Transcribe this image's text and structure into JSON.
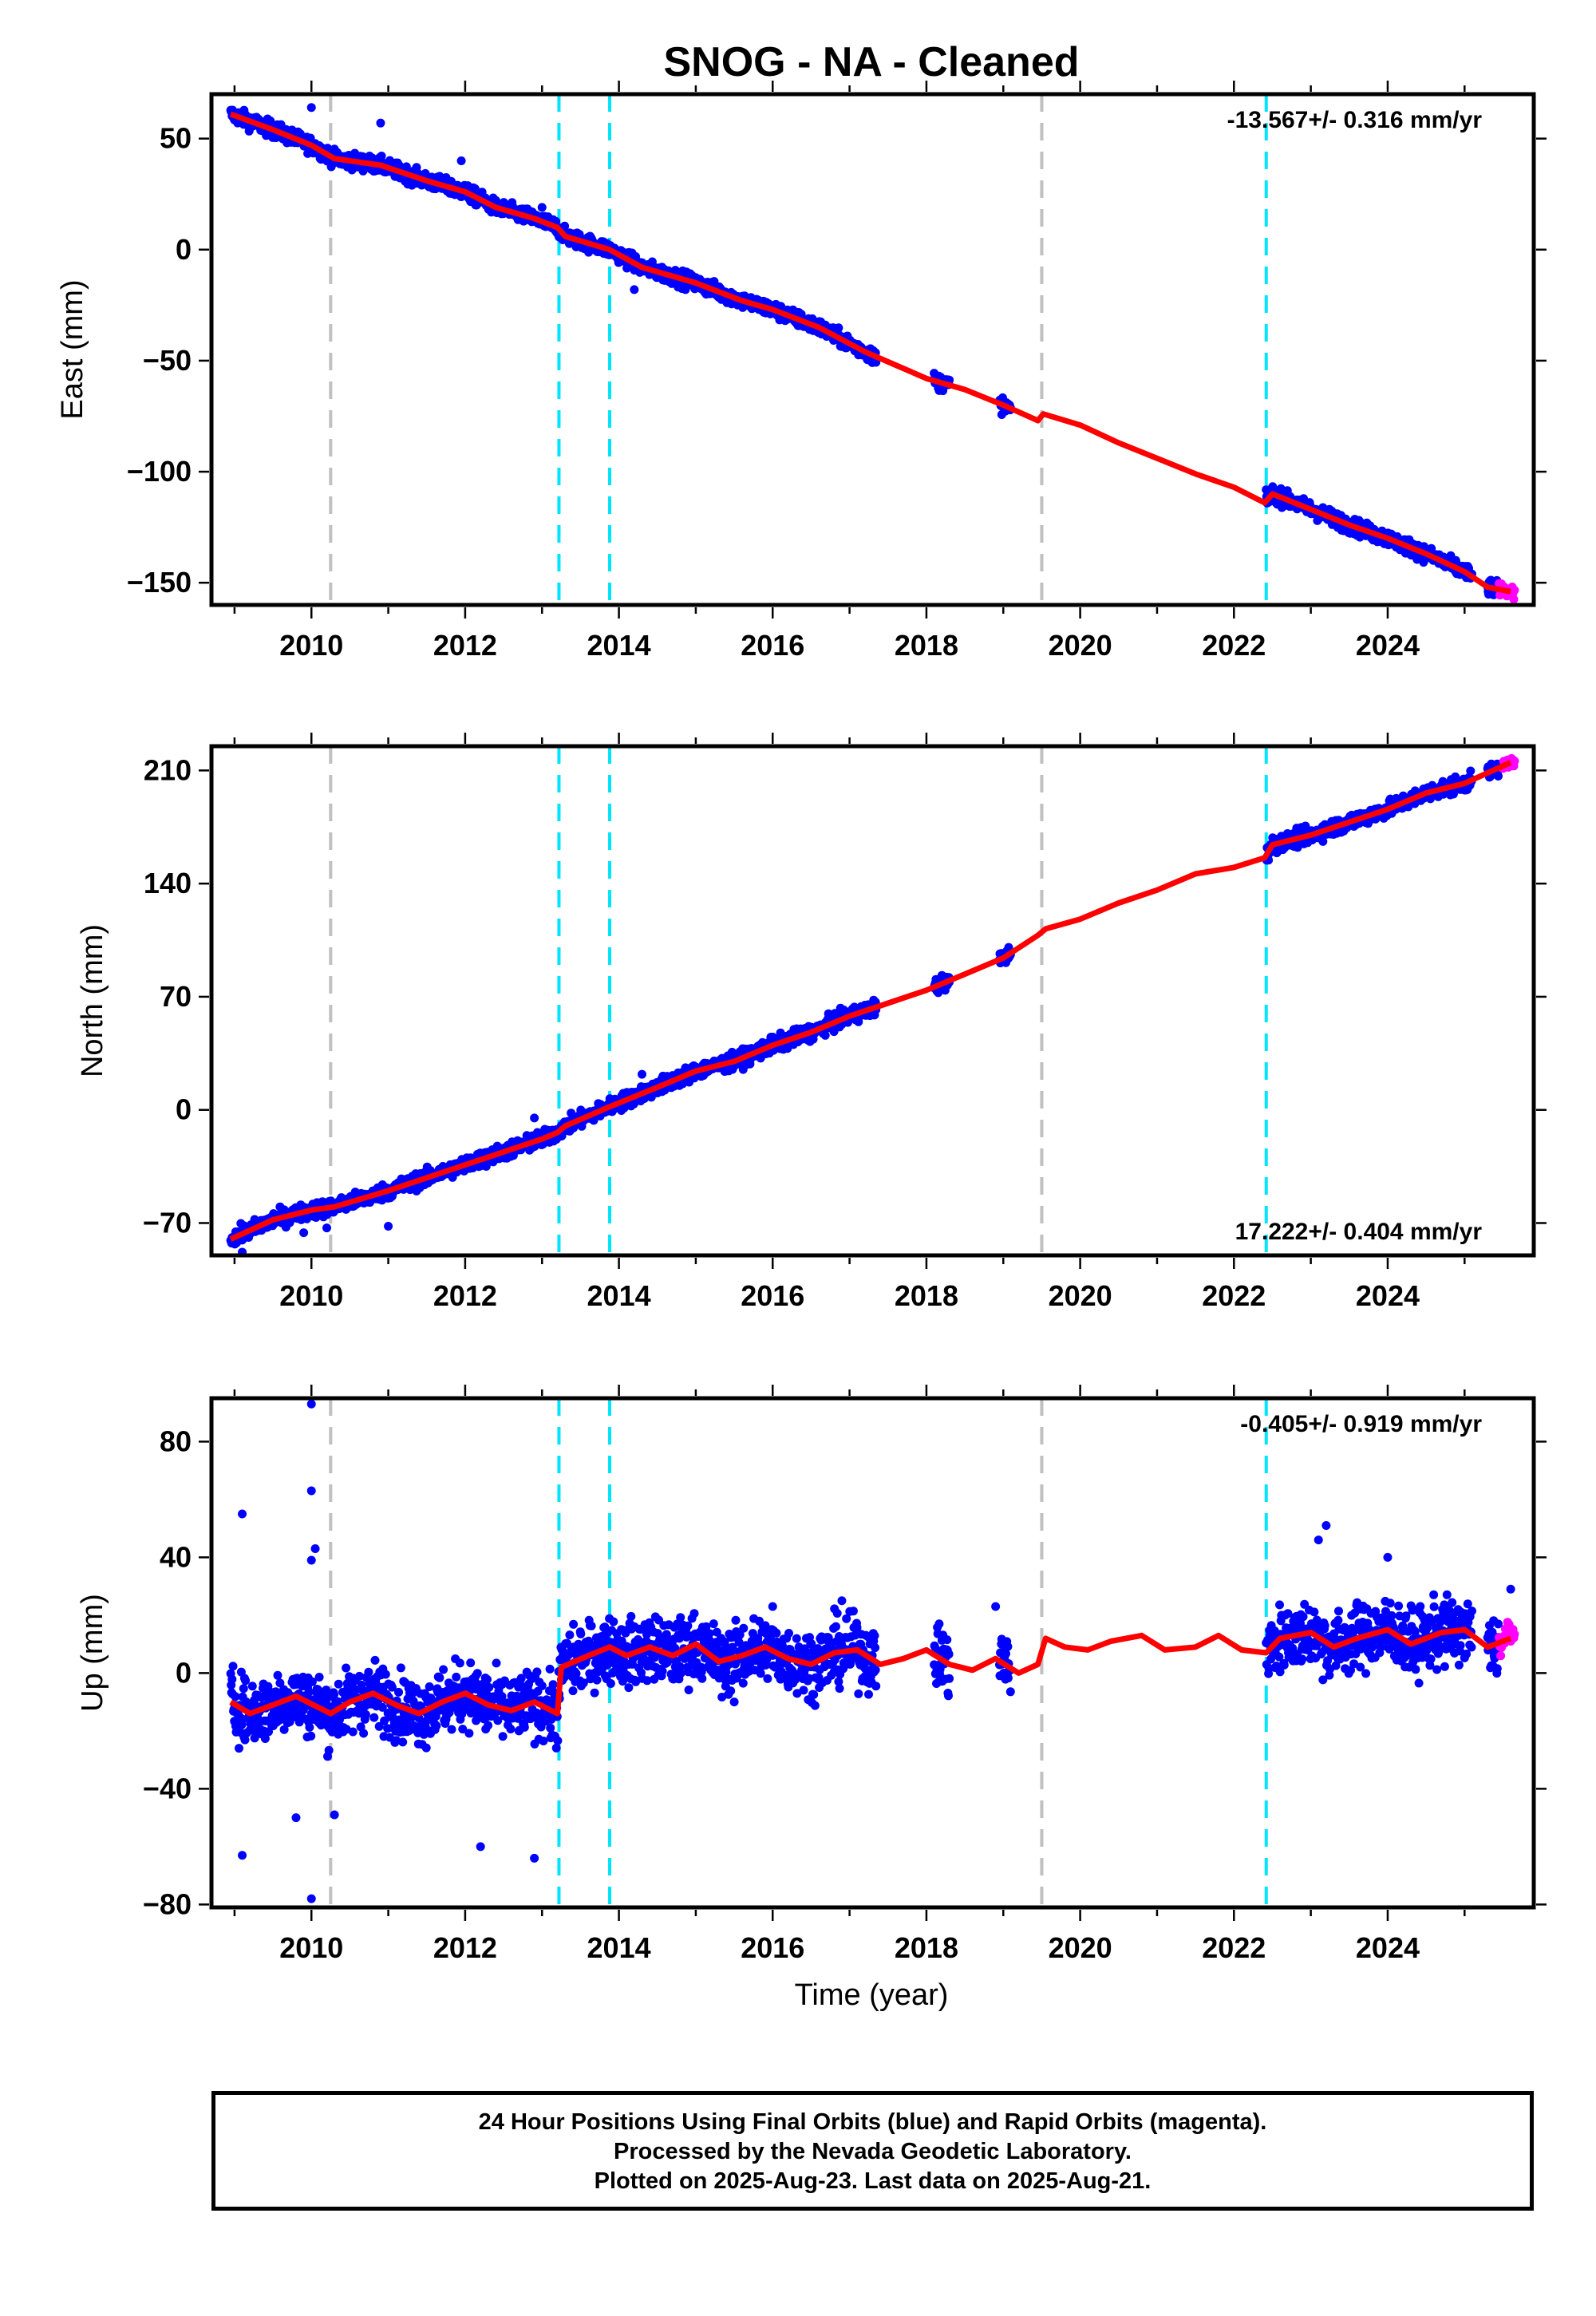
{
  "title": "SNOG  - NA - Cleaned",
  "xlabel": "Time (year)",
  "footer": {
    "line1": "24 Hour Positions Using Final Orbits (blue) and Rapid Orbits (magenta).",
    "line2": "Processed by the Nevada Geodetic Laboratory.",
    "line3": "Plotted on 2025-Aug-23. Last data on 2025-Aug-21."
  },
  "colors": {
    "final": "#0000ff",
    "rapid": "#ff00ff",
    "model": "#ff0000",
    "gray_line": "#c0c0c0",
    "cyan_line": "#00e5ff"
  },
  "chart_data": [
    {
      "type": "scatter",
      "component": "East",
      "ylabel": "East (mm)",
      "rate_label": "-13.567+/- 0.316 mm/yr",
      "rate_position": "top-right",
      "xlim": [
        2008.7,
        2025.9
      ],
      "ylim": [
        -160,
        70
      ],
      "x_ticks": [
        2010,
        2012,
        2014,
        2016,
        2018,
        2020,
        2022,
        2024
      ],
      "y_ticks": [
        -150,
        -100,
        -50,
        0,
        50
      ],
      "equipment_change_lines": [
        2010.25,
        2019.5
      ],
      "earthquake_lines": [
        2013.22,
        2013.88,
        2022.42
      ],
      "model_segments": [
        [
          [
            2008.95,
            61
          ],
          [
            2009.5,
            54
          ],
          [
            2010.0,
            47
          ],
          [
            2010.3,
            41
          ],
          [
            2010.9,
            38
          ],
          [
            2011.5,
            31
          ],
          [
            2012.0,
            26
          ],
          [
            2012.4,
            19
          ],
          [
            2012.9,
            14
          ],
          [
            2013.2,
            10
          ],
          [
            2013.3,
            6
          ],
          [
            2013.88,
            0
          ],
          [
            2014.3,
            -8
          ],
          [
            2015.0,
            -15
          ],
          [
            2015.6,
            -23
          ],
          [
            2016.0,
            -27
          ],
          [
            2016.6,
            -35
          ],
          [
            2017.2,
            -46
          ],
          [
            2017.6,
            -52
          ],
          [
            2018.0,
            -58
          ],
          [
            2018.5,
            -63
          ],
          [
            2019.0,
            -70
          ],
          [
            2019.45,
            -77
          ],
          [
            2019.52,
            -74
          ],
          [
            2020.0,
            -79
          ],
          [
            2020.5,
            -87
          ],
          [
            2021.0,
            -94
          ],
          [
            2021.5,
            -101
          ],
          [
            2022.0,
            -107
          ],
          [
            2022.4,
            -114
          ],
          [
            2022.5,
            -110
          ],
          [
            2023.0,
            -117
          ],
          [
            2023.5,
            -124
          ],
          [
            2024.0,
            -130
          ],
          [
            2024.5,
            -137
          ],
          [
            2025.0,
            -145
          ],
          [
            2025.3,
            -152
          ],
          [
            2025.6,
            -154
          ]
        ]
      ],
      "final_obs": {
        "segments": [
          [
            2008.95,
            2017.35
          ],
          [
            2018.1,
            2018.3
          ],
          [
            2018.95,
            2019.1
          ],
          [
            2022.42,
            2025.1
          ],
          [
            2025.3,
            2025.45
          ]
        ],
        "scatter_mm": 2.5
      },
      "rapid_obs": {
        "segments": [
          [
            2025.45,
            2025.65
          ]
        ],
        "scatter_mm": 2.0
      },
      "outliers": [
        [
          2010.0,
          64
        ],
        [
          2010.9,
          57
        ],
        [
          2011.95,
          40
        ],
        [
          2013.0,
          19
        ],
        [
          2014.2,
          -18
        ]
      ]
    },
    {
      "type": "scatter",
      "component": "North",
      "ylabel": "North (mm)",
      "rate_label": "17.222+/- 0.404 mm/yr",
      "rate_position": "bottom-right",
      "xlim": [
        2008.7,
        2025.9
      ],
      "ylim": [
        -90,
        225
      ],
      "x_ticks": [
        2010,
        2012,
        2014,
        2016,
        2018,
        2020,
        2022,
        2024
      ],
      "y_ticks": [
        -70,
        0,
        70,
        140,
        210
      ],
      "equipment_change_lines": [
        2010.25,
        2019.5
      ],
      "earthquake_lines": [
        2013.22,
        2013.88,
        2022.42
      ],
      "model_segments": [
        [
          [
            2008.95,
            -80
          ],
          [
            2009.5,
            -68
          ],
          [
            2010.0,
            -62
          ],
          [
            2010.3,
            -60
          ],
          [
            2011.0,
            -50
          ],
          [
            2011.5,
            -42
          ],
          [
            2012.0,
            -34
          ],
          [
            2012.5,
            -26
          ],
          [
            2013.0,
            -18
          ],
          [
            2013.2,
            -14
          ],
          [
            2013.3,
            -10
          ],
          [
            2013.88,
            2
          ],
          [
            2014.5,
            14
          ],
          [
            2015.0,
            24
          ],
          [
            2015.5,
            30
          ],
          [
            2016.0,
            40
          ],
          [
            2016.5,
            48
          ],
          [
            2017.0,
            58
          ],
          [
            2017.5,
            66
          ],
          [
            2018.0,
            74
          ],
          [
            2018.5,
            84
          ],
          [
            2019.0,
            94
          ],
          [
            2019.45,
            108
          ],
          [
            2019.55,
            112
          ],
          [
            2020.0,
            118
          ],
          [
            2020.5,
            128
          ],
          [
            2021.0,
            136
          ],
          [
            2021.5,
            146
          ],
          [
            2022.0,
            150
          ],
          [
            2022.4,
            156
          ],
          [
            2022.5,
            164
          ],
          [
            2023.0,
            170
          ],
          [
            2023.5,
            178
          ],
          [
            2024.0,
            186
          ],
          [
            2024.5,
            196
          ],
          [
            2025.0,
            202
          ],
          [
            2025.6,
            215
          ]
        ]
      ],
      "final_obs": {
        "segments": [
          [
            2008.95,
            2017.35
          ],
          [
            2018.1,
            2018.3
          ],
          [
            2018.95,
            2019.1
          ],
          [
            2022.42,
            2025.1
          ],
          [
            2025.3,
            2025.45
          ]
        ],
        "scatter_mm": 3.5
      },
      "rapid_obs": {
        "segments": [
          [
            2025.5,
            2025.65
          ]
        ],
        "scatter_mm": 2.0
      },
      "outliers": [
        [
          2009.1,
          -88
        ],
        [
          2009.9,
          -76
        ],
        [
          2010.2,
          -73
        ],
        [
          2011.0,
          -72
        ],
        [
          2012.9,
          -5
        ],
        [
          2014.3,
          22
        ]
      ]
    },
    {
      "type": "scatter",
      "component": "Up",
      "ylabel": "Up (mm)",
      "rate_label": "-0.405+/- 0.919 mm/yr",
      "rate_position": "top-right",
      "xlim": [
        2008.7,
        2025.9
      ],
      "ylim": [
        -81,
        95
      ],
      "x_ticks": [
        2010,
        2012,
        2014,
        2016,
        2018,
        2020,
        2022,
        2024
      ],
      "y_ticks": [
        -80,
        -40,
        0,
        40,
        80
      ],
      "equipment_change_lines": [
        2010.25,
        2019.5
      ],
      "earthquake_lines": [
        2013.22,
        2013.88,
        2022.42
      ],
      "model_segments": [
        [
          [
            2008.95,
            -10
          ],
          [
            2009.2,
            -14
          ],
          [
            2009.5,
            -11
          ],
          [
            2009.8,
            -8
          ],
          [
            2010.1,
            -12
          ],
          [
            2010.25,
            -14
          ],
          [
            2010.5,
            -10
          ],
          [
            2010.8,
            -7
          ],
          [
            2011.1,
            -11
          ],
          [
            2011.4,
            -14
          ],
          [
            2011.7,
            -10
          ],
          [
            2012.0,
            -7
          ],
          [
            2012.3,
            -11
          ],
          [
            2012.6,
            -13
          ],
          [
            2012.9,
            -10
          ],
          [
            2013.2,
            -14
          ],
          [
            2013.25,
            2
          ],
          [
            2013.6,
            6
          ],
          [
            2013.88,
            9
          ],
          [
            2014.1,
            6
          ],
          [
            2014.4,
            9
          ],
          [
            2014.7,
            6
          ],
          [
            2015.0,
            10
          ],
          [
            2015.3,
            4
          ],
          [
            2015.6,
            6
          ],
          [
            2015.9,
            9
          ],
          [
            2016.2,
            5
          ],
          [
            2016.5,
            3
          ],
          [
            2016.8,
            7
          ],
          [
            2017.1,
            8
          ],
          [
            2017.4,
            3
          ],
          [
            2017.7,
            5
          ],
          [
            2018.0,
            8
          ],
          [
            2018.3,
            3
          ],
          [
            2018.6,
            1
          ],
          [
            2018.9,
            5
          ],
          [
            2019.2,
            0
          ],
          [
            2019.45,
            3
          ],
          [
            2019.55,
            12
          ],
          [
            2019.8,
            9
          ],
          [
            2020.1,
            8
          ],
          [
            2020.4,
            11
          ],
          [
            2020.8,
            13
          ],
          [
            2021.1,
            8
          ],
          [
            2021.5,
            9
          ],
          [
            2021.8,
            13
          ],
          [
            2022.1,
            8
          ],
          [
            2022.42,
            7
          ],
          [
            2022.6,
            12
          ],
          [
            2023.0,
            14
          ],
          [
            2023.3,
            9
          ],
          [
            2023.6,
            12
          ],
          [
            2024.0,
            15
          ],
          [
            2024.3,
            10
          ],
          [
            2024.7,
            14
          ],
          [
            2025.0,
            15
          ],
          [
            2025.3,
            9
          ],
          [
            2025.6,
            12
          ]
        ]
      ],
      "final_obs": {
        "segments": [
          [
            2008.95,
            2017.35
          ],
          [
            2018.1,
            2018.3
          ],
          [
            2018.95,
            2019.1
          ],
          [
            2022.42,
            2025.1
          ],
          [
            2025.3,
            2025.45
          ]
        ],
        "scatter_mm": 8
      },
      "rapid_obs": {
        "segments": [
          [
            2025.45,
            2025.65
          ]
        ],
        "scatter_mm": 6
      },
      "outliers": [
        [
          2009.1,
          55
        ],
        [
          2009.1,
          -63
        ],
        [
          2010.0,
          93
        ],
        [
          2010.0,
          63
        ],
        [
          2010.05,
          43
        ],
        [
          2010.0,
          39
        ],
        [
          2010.0,
          -78
        ],
        [
          2009.8,
          -50
        ],
        [
          2010.3,
          -49
        ],
        [
          2012.2,
          -60
        ],
        [
          2012.9,
          -64
        ],
        [
          2015.5,
          -10
        ],
        [
          2016.0,
          23
        ],
        [
          2016.9,
          25
        ],
        [
          2018.9,
          23
        ],
        [
          2023.1,
          46
        ],
        [
          2023.2,
          51
        ],
        [
          2024.0,
          40
        ],
        [
          2025.6,
          29
        ]
      ]
    }
  ]
}
